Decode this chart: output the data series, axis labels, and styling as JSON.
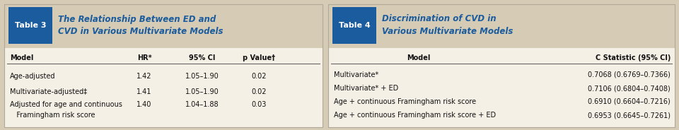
{
  "bg_color": "#d6cbb5",
  "header_strip_color": "#d6cbb5",
  "body_color": "#f5f0e6",
  "blue_box_color": "#1a5c9e",
  "header_text_color": "#ffffff",
  "title_color": "#1a5c9e",
  "divider_color": "#666666",
  "text_color": "#111111",
  "table3": {
    "label": "Table 3",
    "title1": "The Relationship Between ED and",
    "title2": "CVD in Various Multivariate Models",
    "col_headers": [
      "Model",
      "HR*",
      "95% CI",
      "p Value†"
    ],
    "rows": [
      [
        "Age-adjusted",
        "1.42",
        "1.05–1.90",
        "0.02"
      ],
      [
        "Multivariate-adjusted‡",
        "1.41",
        "1.05–1.90",
        "0.02"
      ],
      [
        "Adjusted for age and continuous",
        "1.40",
        "1.04–1.88",
        "0.03"
      ],
      [
        "   Framingham risk score",
        "",
        "",
        ""
      ]
    ]
  },
  "table4": {
    "label": "Table 4",
    "title1": "Discrimination of CVD in",
    "title2": "Various Multivariate Models",
    "col_headers": [
      "Model",
      "C Statistic (95% CI)"
    ],
    "rows": [
      [
        "Multivariate*",
        "0.7068 (0.6769–0.7366)"
      ],
      [
        "Multivariate* + ED",
        "0.7106 (0.6804–0.7408)"
      ],
      [
        "Age + continuous Framingham risk score",
        "0.6910 (0.6604–0.7216)"
      ],
      [
        "Age + continuous Framingham risk score + ED",
        "0.6953 (0.6645–0.7261)"
      ]
    ]
  }
}
